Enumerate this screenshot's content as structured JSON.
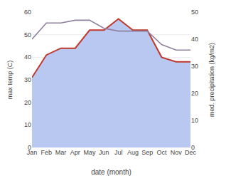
{
  "chart_data": {
    "type": "line",
    "categories": [
      "Jan",
      "Feb",
      "Mar",
      "Apr",
      "May",
      "Jun",
      "Jul",
      "Aug",
      "Sep",
      "Oct",
      "Nov",
      "Dec"
    ],
    "series": [
      {
        "type": "area",
        "color": "#b8c8f0",
        "values": [
          31,
          41,
          44,
          44,
          52,
          52,
          57,
          52,
          52,
          40,
          38,
          38
        ]
      },
      {
        "type": "line",
        "color": "#c0392b",
        "values": [
          31,
          41,
          44,
          44,
          52,
          52,
          57,
          52,
          52,
          40,
          38,
          38
        ]
      },
      {
        "type": "line",
        "color": "#9080a0",
        "axis": "y2",
        "values": [
          40,
          46,
          46,
          47,
          47,
          44,
          43,
          43,
          43,
          38,
          36,
          36
        ]
      }
    ],
    "xlabel": "date (month)",
    "ylabel": "max temp (C)",
    "y2label": "med. precipitation (kg/m2)",
    "ylim": [
      0,
      60
    ],
    "yticks": [
      0,
      10,
      20,
      30,
      40,
      50,
      60
    ],
    "y2lim": [
      0,
      50
    ],
    "y2ticks": [
      0,
      10,
      20,
      30,
      40,
      50
    ],
    "grid": true
  }
}
